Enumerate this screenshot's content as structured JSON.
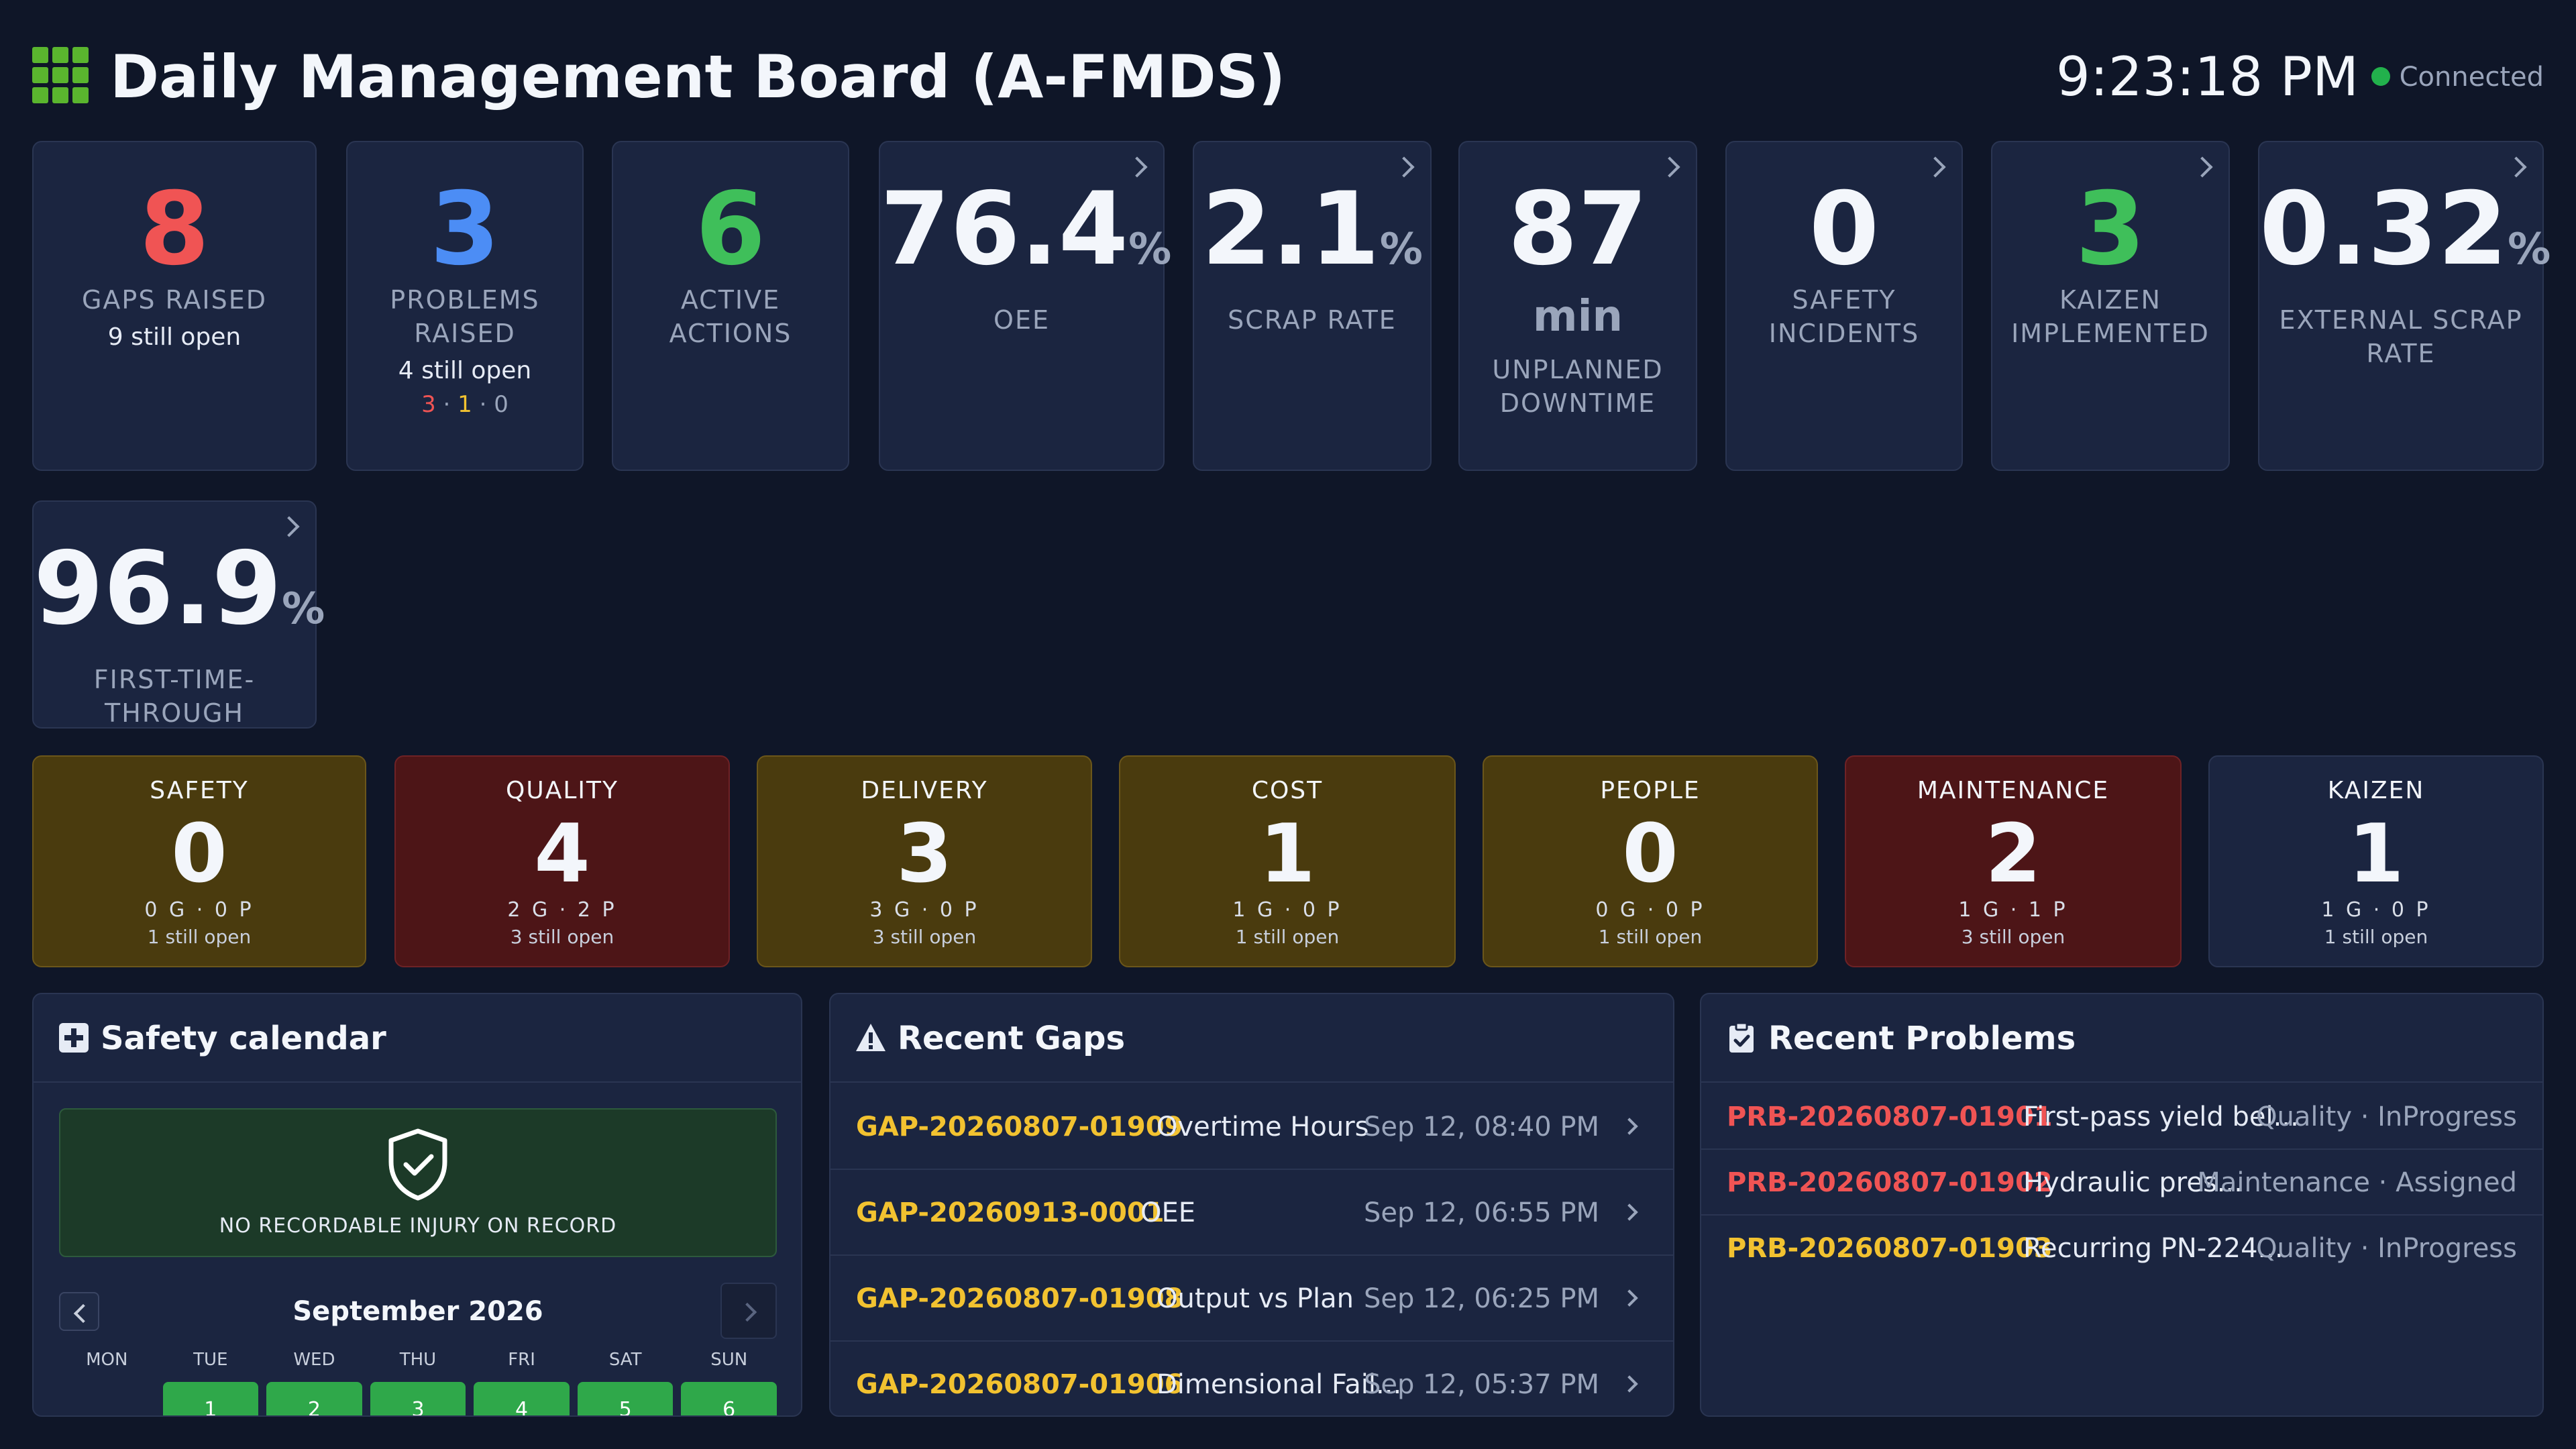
{
  "header": {
    "title": "Daily Management Board (A-FMDS)",
    "clock": "9:23:18 PM",
    "status": "Connected",
    "accent": "#5ab52e",
    "status_color": "#22b14c"
  },
  "kpis": {
    "gaps": {
      "value": "8",
      "label": "GAPS RAISED",
      "sub": "9 still open"
    },
    "problems": {
      "value": "3",
      "label": "PROBLEMS RAISED",
      "sub": "4 still open",
      "breakdown": [
        "3",
        "1",
        "0"
      ],
      "sep": "·"
    },
    "actions": {
      "value": "6",
      "label": "ACTIVE ACTIONS"
    },
    "oee": {
      "value": "76.4",
      "unit": "%",
      "label": "OEE"
    },
    "scrap": {
      "value": "2.1",
      "unit": "%",
      "label": "SCRAP RATE"
    },
    "downtime": {
      "value": "87",
      "unit": "min",
      "label": "UNPLANNED DOWNTIME"
    },
    "safety": {
      "value": "0",
      "label": "SAFETY INCIDENTS"
    },
    "kaizen": {
      "value": "3",
      "label": "KAIZEN IMPLEMENTED"
    },
    "ext_scrap": {
      "value": "0.32",
      "unit": "%",
      "label": "EXTERNAL SCRAP RATE"
    },
    "ftt": {
      "value": "96.9",
      "unit": "%",
      "label": "FIRST-TIME-THROUGH"
    }
  },
  "categories": [
    {
      "name": "SAFETY",
      "value": "0",
      "gp": "0 G · 0 P",
      "open": "1 still open"
    },
    {
      "name": "QUALITY",
      "value": "4",
      "gp": "2 G · 2 P",
      "open": "3 still open"
    },
    {
      "name": "DELIVERY",
      "value": "3",
      "gp": "3 G · 0 P",
      "open": "3 still open"
    },
    {
      "name": "COST",
      "value": "1",
      "gp": "1 G · 0 P",
      "open": "1 still open"
    },
    {
      "name": "PEOPLE",
      "value": "0",
      "gp": "0 G · 0 P",
      "open": "1 still open"
    },
    {
      "name": "MAINTENANCE",
      "value": "2",
      "gp": "1 G · 1 P",
      "open": "3 still open"
    },
    {
      "name": "KAIZEN",
      "value": "1",
      "gp": "1 G · 0 P",
      "open": "1 still open"
    }
  ],
  "safety_calendar": {
    "title": "Safety calendar",
    "status_text": "NO RECORDABLE INJURY ON RECORD",
    "month": "September 2026",
    "weekdays": [
      "MON",
      "TUE",
      "WED",
      "THU",
      "FRI",
      "SAT",
      "SUN"
    ],
    "days": [
      "1",
      "2",
      "3",
      "4",
      "5",
      "6"
    ]
  },
  "recent_gaps": {
    "title": "Recent Gaps",
    "rows": [
      {
        "id": "GAP-20260807-01909",
        "desc": "Overtime Hours",
        "time": "Sep 12, 08:40 PM"
      },
      {
        "id": "GAP-20260913-0001",
        "desc": "OEE",
        "time": "Sep 12, 06:55 PM"
      },
      {
        "id": "GAP-20260807-01908",
        "desc": "Output vs Plan",
        "time": "Sep 12, 06:25 PM"
      },
      {
        "id": "GAP-20260807-01906",
        "desc": "Dimensional Fail...",
        "time": "Sep 12, 05:37 PM"
      }
    ]
  },
  "recent_problems": {
    "title": "Recent Problems",
    "rows": [
      {
        "id": "PRB-20260807-01901",
        "desc": "First-pass yield bel...",
        "meta": "Quality · InProgress",
        "color": "#f05454"
      },
      {
        "id": "PRB-20260807-01902",
        "desc": "Hydraulic pres...",
        "meta": "Maintenance · Assigned",
        "color": "#f05454"
      },
      {
        "id": "PRB-20260807-01903",
        "desc": "Recurring PN-224...",
        "meta": "Quality · InProgress",
        "color": "#f2c230"
      }
    ]
  }
}
